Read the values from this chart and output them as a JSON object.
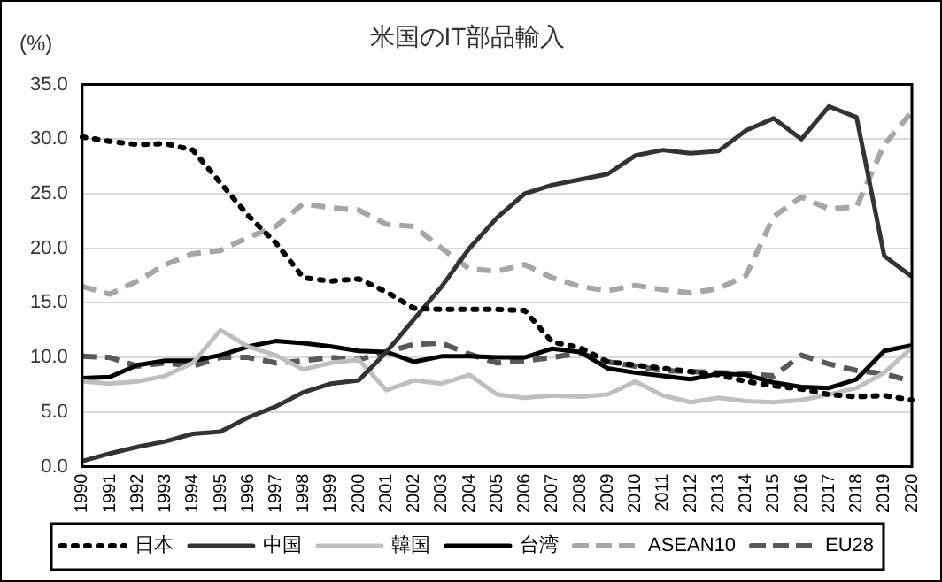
{
  "chart_data": {
    "type": "line",
    "title": "米国のIT部品輸入",
    "ylabel": "(%)",
    "categories": [
      "1990",
      "1991",
      "1992",
      "1993",
      "1994",
      "1995",
      "1996",
      "1997",
      "1998",
      "1999",
      "2000",
      "2001",
      "2002",
      "2003",
      "2004",
      "2005",
      "2006",
      "2007",
      "2008",
      "2009",
      "2010",
      "2011",
      "2012",
      "2013",
      "2014",
      "2015",
      "2016",
      "2017",
      "2018",
      "2019",
      "2020"
    ],
    "series": [
      {
        "name": "日本",
        "color": "#000000",
        "line_style": "dotted",
        "values": [
          30.2,
          29.8,
          29.5,
          29.6,
          29.0,
          26.0,
          23.0,
          20.5,
          17.3,
          17.0,
          17.2,
          16.0,
          14.5,
          14.4,
          14.4,
          14.4,
          14.3,
          11.4,
          10.9,
          9.6,
          9.3,
          9.0,
          8.7,
          8.4,
          7.8,
          7.4,
          7.1,
          6.6,
          6.4,
          6.5,
          6.1
        ]
      },
      {
        "name": "中国",
        "color": "#333333",
        "line_style": "solid",
        "values": [
          0.5,
          1.2,
          1.8,
          2.3,
          3.0,
          3.2,
          4.5,
          5.5,
          6.8,
          7.6,
          7.9,
          10.5,
          13.5,
          16.5,
          20.0,
          22.8,
          25.0,
          25.8,
          26.3,
          26.8,
          28.5,
          29.0,
          28.7,
          28.9,
          30.8,
          31.9,
          30.0,
          33.0,
          32.0,
          19.3,
          17.4
        ]
      },
      {
        "name": "韓国",
        "color": "#bfbfbf",
        "line_style": "solid",
        "values": [
          7.8,
          7.6,
          7.8,
          8.3,
          9.5,
          12.5,
          11.0,
          10.2,
          8.9,
          9.5,
          9.8,
          7.0,
          7.9,
          7.6,
          8.4,
          6.6,
          6.3,
          6.5,
          6.4,
          6.6,
          7.8,
          6.5,
          5.9,
          6.3,
          6.0,
          5.9,
          6.1,
          6.6,
          7.2,
          8.6,
          10.9
        ]
      },
      {
        "name": "台湾",
        "color": "#000000",
        "line_style": "solid",
        "values": [
          8.1,
          8.2,
          9.3,
          9.7,
          9.7,
          10.2,
          11.0,
          11.5,
          11.3,
          11.0,
          10.6,
          10.5,
          9.6,
          10.1,
          10.1,
          10.0,
          10.0,
          10.8,
          10.5,
          9.0,
          8.6,
          8.3,
          8.0,
          8.5,
          8.4,
          7.7,
          7.3,
          7.2,
          8.0,
          10.6,
          11.1
        ]
      },
      {
        "name": "ASEAN10",
        "color": "#a6a6a6",
        "line_style": "dashed",
        "values": [
          16.5,
          15.8,
          17.0,
          18.5,
          19.5,
          19.8,
          21.0,
          22.0,
          24.1,
          23.7,
          23.5,
          22.2,
          22.0,
          20.0,
          18.1,
          17.9,
          18.5,
          17.3,
          16.5,
          16.1,
          16.6,
          16.2,
          15.9,
          16.3,
          17.5,
          22.9,
          24.7,
          23.6,
          23.8,
          29.5,
          32.5
        ]
      },
      {
        "name": "EU28",
        "color": "#595959",
        "line_style": "dashed",
        "values": [
          10.1,
          10.0,
          9.2,
          9.5,
          9.2,
          10.0,
          10.0,
          9.5,
          9.7,
          10.0,
          9.8,
          10.5,
          11.2,
          11.3,
          10.3,
          9.5,
          9.7,
          10.0,
          10.4,
          9.6,
          9.2,
          8.8,
          8.7,
          8.6,
          8.5,
          8.3,
          10.2,
          9.4,
          8.8,
          8.5,
          7.8
        ]
      }
    ],
    "ylim": [
      0,
      35
    ],
    "yticks": [
      {
        "value": 0,
        "label": "0.0"
      },
      {
        "value": 5,
        "label": "5.0"
      },
      {
        "value": 10,
        "label": "10.0"
      },
      {
        "value": 15,
        "label": "15.0"
      },
      {
        "value": 20,
        "label": "20.0"
      },
      {
        "value": 25,
        "label": "25.0"
      },
      {
        "value": 30,
        "label": "30.0"
      },
      {
        "value": 35,
        "label": "35.0"
      }
    ],
    "grid": "y",
    "legend": "bottom",
    "marker": "none"
  }
}
